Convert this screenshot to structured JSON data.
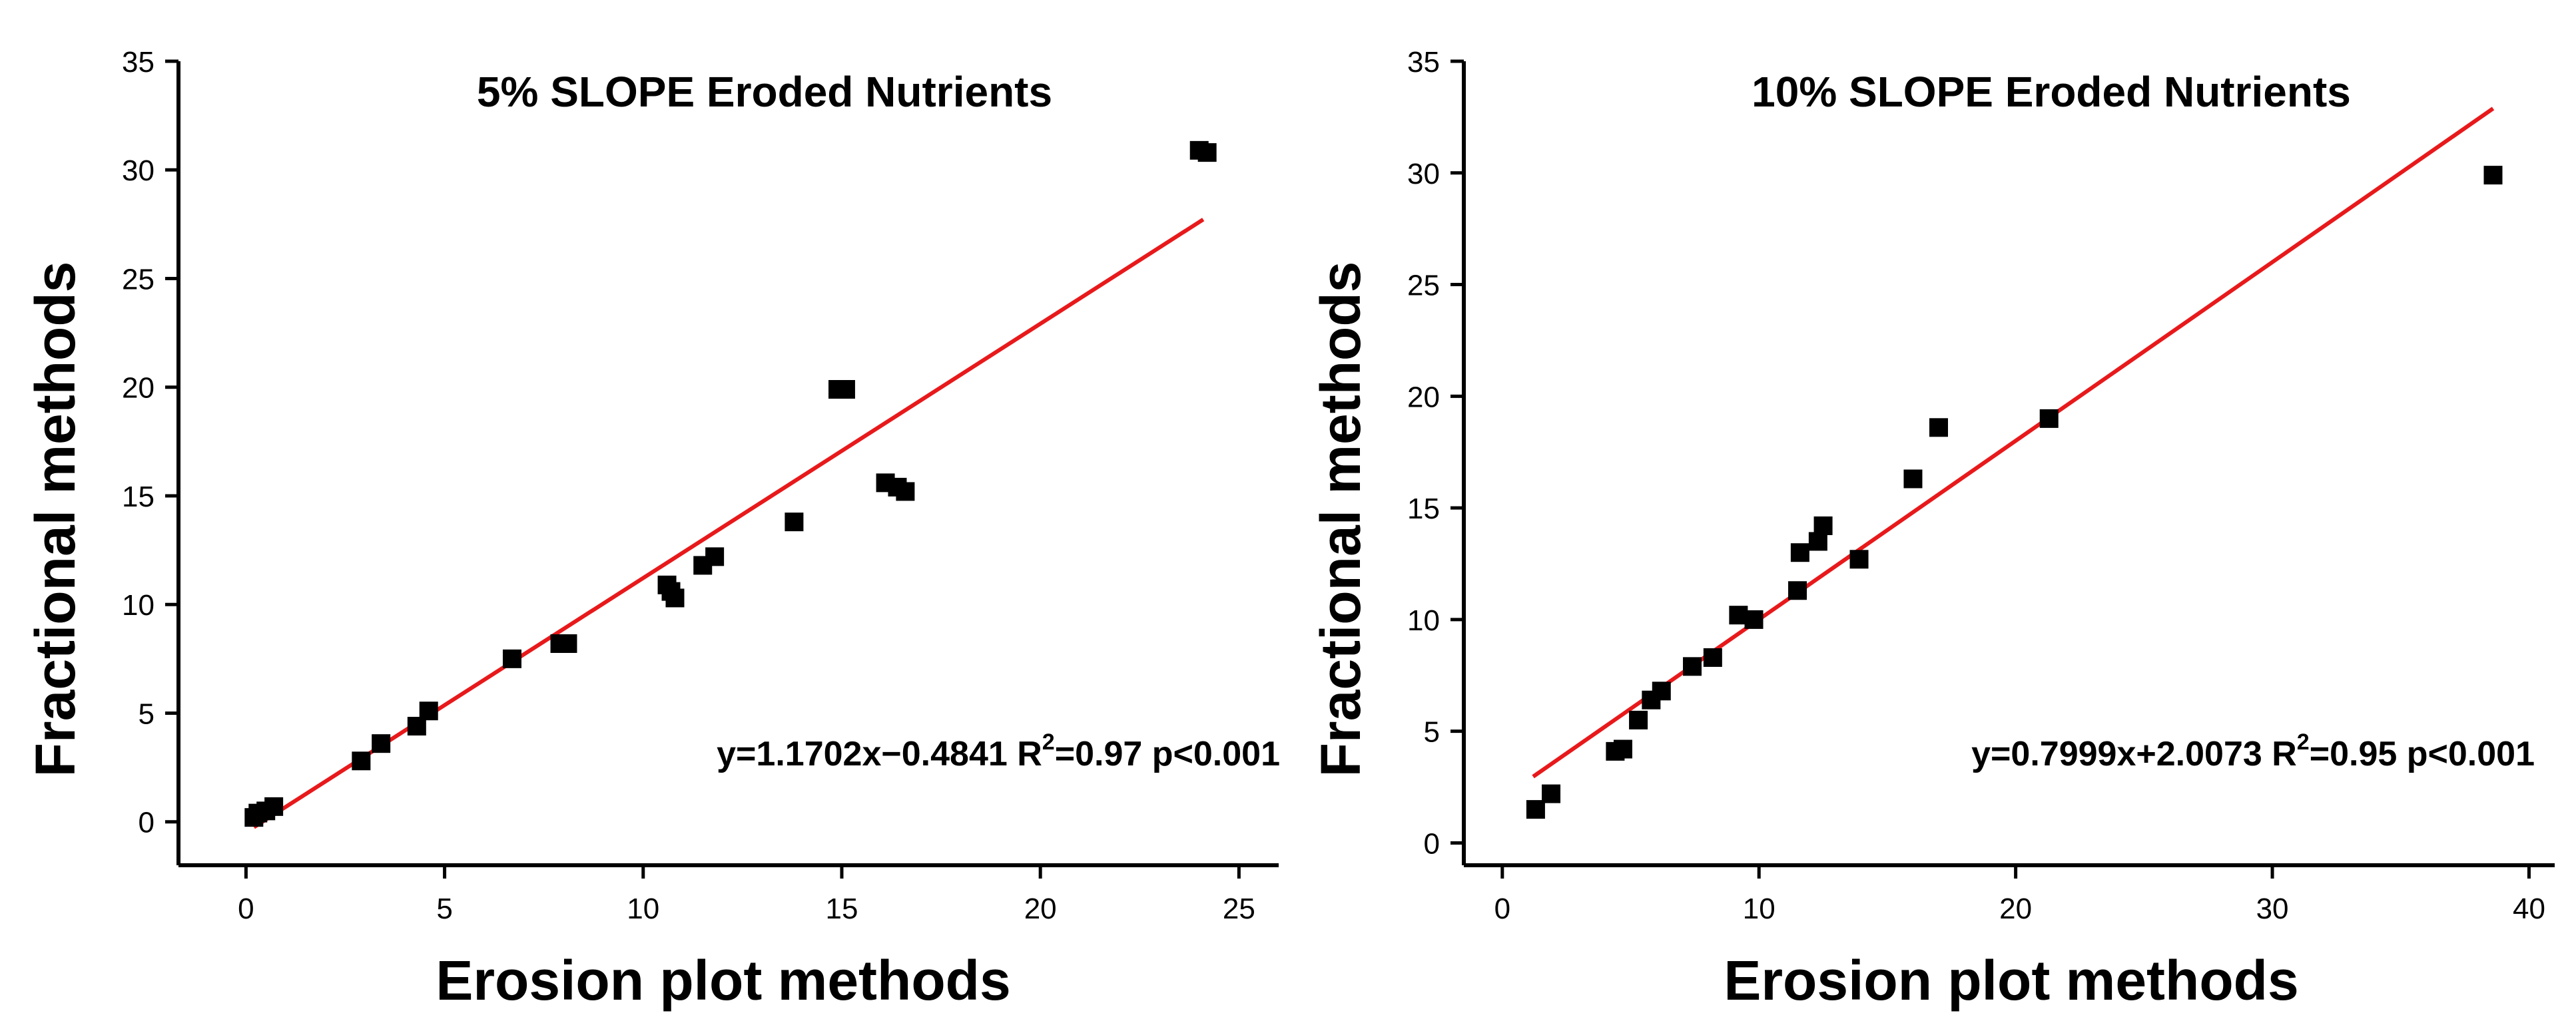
{
  "chart_data": [
    {
      "type": "scatter",
      "title": "5% SLOPE Eroded Nutrients",
      "xlabel": "Erosion plot methods",
      "ylabel": "Fractional methods",
      "xlim": [
        -1.7,
        26
      ],
      "ylim": [
        -2,
        35
      ],
      "xticks": [
        0,
        5,
        10,
        15,
        20,
        25
      ],
      "yticks": [
        0,
        5,
        10,
        15,
        20,
        25,
        30,
        35
      ],
      "annotation": {
        "eq": "y=1.1702x−0.4841 R",
        "sup": "2",
        "stats": "=0.97 p<0.001"
      },
      "fit": {
        "slope": 1.1702,
        "intercept": -0.4841,
        "x_range": [
          0.2,
          24.1
        ],
        "color": "#e8191b"
      },
      "series": [
        {
          "name": "observations",
          "x": [
            0.2,
            0.3,
            0.5,
            0.7,
            2.9,
            3.4,
            4.3,
            4.6,
            6.7,
            7.9,
            8.1,
            10.6,
            10.7,
            10.8,
            11.5,
            11.8,
            13.8,
            14.9,
            15.1,
            16.1,
            16.4,
            16.6,
            24.0,
            24.2
          ],
          "y": [
            0.2,
            0.4,
            0.5,
            0.7,
            2.8,
            3.6,
            4.4,
            5.1,
            7.5,
            8.2,
            8.2,
            10.9,
            10.6,
            10.3,
            11.8,
            12.2,
            13.8,
            19.9,
            19.9,
            15.6,
            15.4,
            15.2,
            30.9,
            30.8
          ]
        }
      ]
    },
    {
      "type": "scatter",
      "title": "10% SLOPE Eroded Nutrients",
      "xlabel": "Erosion plot methods",
      "ylabel": "Fractional methods",
      "xlim": [
        -1.5,
        41
      ],
      "ylim": [
        -1,
        35
      ],
      "xticks": [
        0,
        10,
        20,
        30,
        40
      ],
      "yticks": [
        0,
        5,
        10,
        15,
        20,
        25,
        30,
        35
      ],
      "annotation": {
        "eq": "y=0.7999x+2.0073  R",
        "sup": "2",
        "stats": "=0.95  p<0.001"
      },
      "fit": {
        "slope": 0.7999,
        "intercept": 2.0073,
        "x_range": [
          1.2,
          38.6
        ],
        "color": "#e8191b"
      },
      "series": [
        {
          "name": "observations",
          "x": [
            1.3,
            1.9,
            4.4,
            4.7,
            5.3,
            5.8,
            6.2,
            7.4,
            8.2,
            9.2,
            9.8,
            11.5,
            11.6,
            12.3,
            12.5,
            13.9,
            16.0,
            17.0,
            21.3,
            38.6
          ],
          "y": [
            1.5,
            2.2,
            4.1,
            4.2,
            5.5,
            6.4,
            6.8,
            7.9,
            8.3,
            10.2,
            10.0,
            11.3,
            13.0,
            13.5,
            14.2,
            12.7,
            16.3,
            18.6,
            19.0,
            29.9
          ]
        }
      ]
    }
  ]
}
